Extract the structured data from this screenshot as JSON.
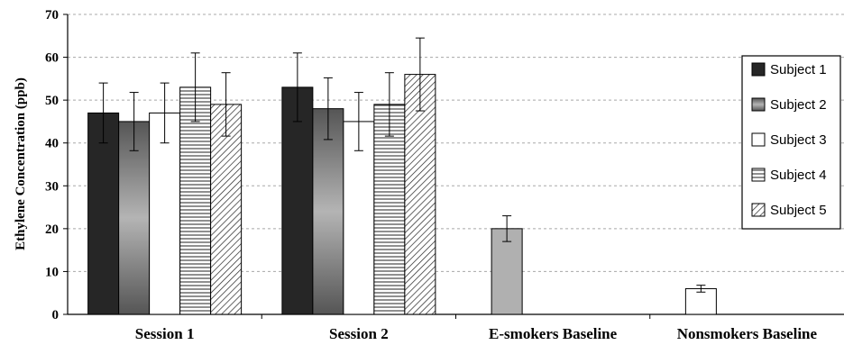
{
  "chart_data": {
    "type": "bar",
    "title": "",
    "xlabel": "",
    "ylabel": "Ethylene Concentration (ppb)",
    "ylim": [
      0,
      70
    ],
    "yticks": [
      0,
      10,
      20,
      30,
      40,
      50,
      60,
      70
    ],
    "grid": true,
    "legend_position": "right",
    "categories": [
      "Session 1",
      "Session 2",
      "E-smokers Baseline",
      "Nonsmokers Baseline"
    ],
    "series": [
      {
        "name": "Subject 1",
        "fill": "solid-dark",
        "values": [
          47,
          53,
          null,
          null
        ],
        "errors": [
          7,
          8,
          null,
          null
        ]
      },
      {
        "name": "Subject 2",
        "fill": "gradient-gray",
        "values": [
          45,
          48,
          null,
          null
        ],
        "errors": [
          6.8,
          7.2,
          null,
          null
        ]
      },
      {
        "name": "Subject 3",
        "fill": "white",
        "values": [
          47,
          45,
          null,
          null
        ],
        "errors": [
          7,
          6.8,
          null,
          null
        ]
      },
      {
        "name": "Subject 4",
        "fill": "horizontal-stripes",
        "values": [
          53,
          49,
          null,
          null
        ],
        "errors": [
          8,
          7.4,
          null,
          null
        ]
      },
      {
        "name": "Subject 5",
        "fill": "diagonal-stripes",
        "values": [
          49,
          56,
          null,
          null
        ],
        "errors": [
          7.4,
          8.5,
          null,
          null
        ]
      }
    ],
    "baselines": [
      {
        "category": "E-smokers Baseline",
        "value": 20,
        "error": 3,
        "fill": "light-gray"
      },
      {
        "category": "Nonsmokers Baseline",
        "value": 6,
        "error": 0.8,
        "fill": "white"
      }
    ],
    "colors": {
      "dark": "#262626",
      "gray": "#9e9e9e",
      "light_gray": "#b0b0b0",
      "white": "#ffffff",
      "grid": "#a8a8a8"
    }
  }
}
